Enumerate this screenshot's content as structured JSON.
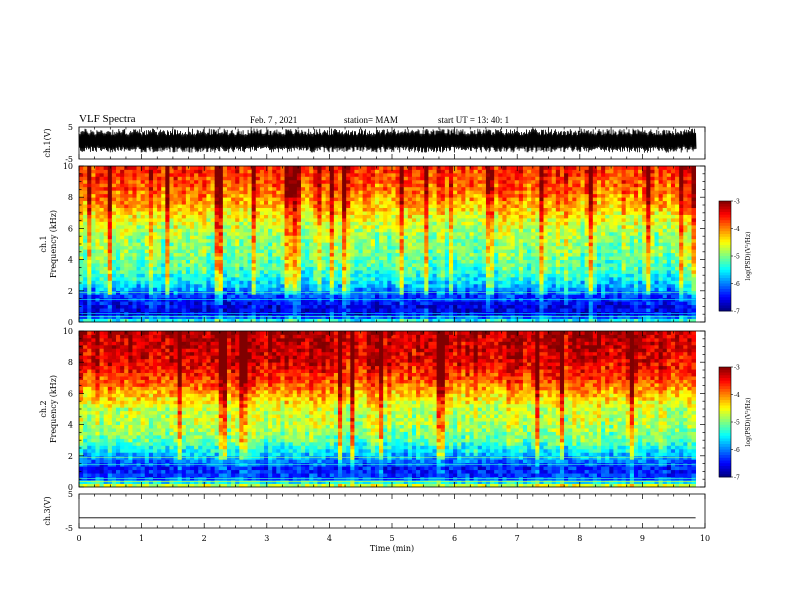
{
  "header": {
    "title": "VLF Spectra",
    "date": "Feb. 7 , 2021",
    "station": "station= MAM",
    "start_ut": "start UT = 13: 40: 1"
  },
  "chart_data": [
    {
      "type": "line",
      "name": "waveform-ch1",
      "ylabel": "ch.1(V)",
      "ylim": [
        -5,
        5
      ],
      "yticks": [
        "5",
        "-5"
      ],
      "xlim": [
        0,
        10
      ],
      "signal": "dense noise bursts",
      "note": "waveform spans roughly -3 to +4.5 V with data ending near 9.85 min"
    },
    {
      "type": "heatmap",
      "name": "spectrogram-ch1",
      "ylabel": "ch.1\nFrequency (kHz)",
      "ylim": [
        0,
        10
      ],
      "yticks": [
        "0",
        "2",
        "4",
        "6",
        "8",
        "10"
      ],
      "xlim": [
        0,
        10
      ],
      "data_end_min": 9.85,
      "colorbar": {
        "label": "log(PSD)(V²/Hz)",
        "range": [
          -7,
          -3
        ],
        "ticks": [
          "-3",
          "-4",
          "-5",
          "-6",
          "-7"
        ]
      },
      "profile_khz_vs_logpsd": [
        [
          0,
          -5.2
        ],
        [
          0.5,
          -6.6
        ],
        [
          1.0,
          -6.6
        ],
        [
          1.6,
          -6.3
        ],
        [
          2.5,
          -5.6
        ],
        [
          3.5,
          -5.2
        ],
        [
          4.5,
          -5.0
        ],
        [
          5.5,
          -4.9
        ],
        [
          6.5,
          -4.6
        ],
        [
          7.5,
          -4.2
        ],
        [
          8.5,
          -3.9
        ],
        [
          10,
          -3.6
        ]
      ]
    },
    {
      "type": "heatmap",
      "name": "spectrogram-ch2",
      "ylabel": "ch.2\nFrequency (kHz)",
      "ylim": [
        0,
        10
      ],
      "yticks": [
        "0",
        "2",
        "4",
        "6",
        "8",
        "10"
      ],
      "xlim": [
        0,
        10
      ],
      "data_end_min": 9.85,
      "colorbar": {
        "label": "log(PSD)(V²/Hz)",
        "range": [
          -7,
          -3
        ],
        "ticks": [
          "-3",
          "-4",
          "-5",
          "-6",
          "-7"
        ]
      },
      "profile_khz_vs_logpsd": [
        [
          0,
          -4.3
        ],
        [
          0.5,
          -6.2
        ],
        [
          1.2,
          -6.4
        ],
        [
          2.0,
          -5.8
        ],
        [
          3.0,
          -5.1
        ],
        [
          4.0,
          -4.8
        ],
        [
          5.0,
          -4.7
        ],
        [
          6.0,
          -4.2
        ],
        [
          7.0,
          -3.7
        ],
        [
          8.0,
          -3.4
        ],
        [
          10,
          -3.2
        ]
      ]
    },
    {
      "type": "line",
      "name": "waveform-ch3",
      "ylabel": "ch.3(V)",
      "ylim": [
        -5,
        5
      ],
      "yticks": [
        "5",
        "-5"
      ],
      "xlim": [
        0,
        10
      ],
      "constant_value": -2,
      "xlabel": "Time (min)",
      "xticks": [
        "0",
        "1",
        "2",
        "3",
        "4",
        "5",
        "6",
        "7",
        "8",
        "9",
        "10"
      ]
    }
  ]
}
